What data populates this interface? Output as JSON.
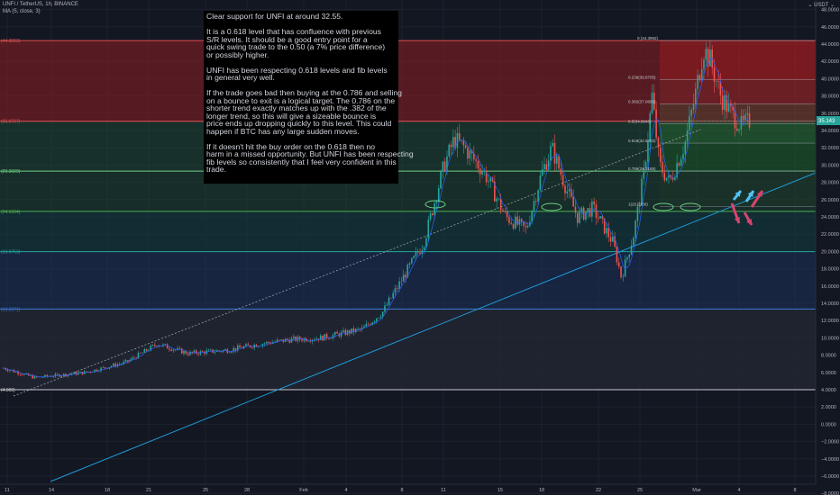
{
  "symbol_title": "UNFI / TetherUS, 1h, BINANCE",
  "indicator_label": "MA (5, close, 3)",
  "currency_selector": "USDT",
  "annotation": {
    "paragraphs": [
      [
        "Clear support for UNFI at around 32.55."
      ],
      [
        "It is a 0.618 level that has confluence with previous",
        "S/R levels. It should be a good entry point for a",
        "quick swing trade to the 0.50 (a 7% price difference)",
        "or possibly higher."
      ],
      [
        "UNFI has been respecting 0.618 levels and fib levels",
        "in general very well."
      ],
      [
        "If the trade goes bad then buying at the 0.786 and selling",
        "on a bounce to exit is a logical target. The 0.786 on the",
        "shorter trend exactly matches up with the .382 of the",
        "longer trend, so this will give a sizeable bounce is",
        "price ends up dropping quickly to this level. This could",
        "happen if BTC has any large sudden moves."
      ],
      [
        "If it doesn't hit the buy order on the 0.618 then no",
        "harm in a missed opportunity. But UNFI has been respecting",
        "fib levels so consistently that I feel very confident in this",
        "trade."
      ]
    ]
  },
  "left_fib_labels": [
    "(44.3992)",
    "(35.0727)",
    "(29.3029)",
    "(24.6394)",
    "(19.9753)",
    "(13.3371)",
    "(4.000)"
  ],
  "right_fib_labels": [
    "0 (44.3992)",
    "0.236(39.8705)",
    "0.382(37.0689)",
    "0.5(34.8046)",
    "0.618(32.5402)",
    "0.786(29.3165)",
    "1(25.2100)"
  ],
  "current_price": "35.143",
  "colors": {
    "background": "#131722",
    "grid": "#1e222d",
    "text": "#b2b5be",
    "candle_up": "#26a69a",
    "candle_down": "#ef5350",
    "ma_line": "#2962ff",
    "trendline": "#1e9bd7",
    "fib_zone_red": "#8e1e22",
    "fib_zone_green": "#1d4a33",
    "fib_zone_teal": "#123a3f",
    "fib_zone_blue": "#1b3159",
    "fib_zone_gray": "#232733",
    "price_tag": "#26a69a"
  },
  "chart_data": {
    "type": "candlestick",
    "title": "UNFI / TetherUS, 1h, BINANCE",
    "xlabel": "",
    "ylabel": "",
    "ylim": [
      -10,
      64
    ],
    "x_tick_labels": [
      "11",
      "14",
      "18",
      "21",
      "25",
      "28",
      "Feb",
      "4",
      "8",
      "11",
      "15",
      "18",
      "22",
      "25",
      "Mar",
      "4",
      "8"
    ],
    "y_tick_labels": [
      "62.0000",
      "60.0000",
      "58.0000",
      "56.0000",
      "54.0000",
      "52.0000",
      "50.0000",
      "48.0000",
      "46.0000",
      "44.0000",
      "42.0000",
      "40.0000",
      "38.0000",
      "36.0000",
      "34.0000",
      "32.0000",
      "30.0000",
      "28.0000",
      "26.0000",
      "24.0000",
      "22.0000",
      "20.0000",
      "18.0000",
      "16.0000",
      "14.0000",
      "12.0000",
      "10.0000",
      "8.0000",
      "6.0000",
      "4.0000",
      "2.0000",
      "0.0000",
      "−2.0000",
      "−4.0000",
      "−6.0000",
      "−8.0000"
    ],
    "y_tick_values": [
      62,
      60,
      58,
      56,
      54,
      52,
      50,
      48,
      46,
      44,
      42,
      40,
      38,
      36,
      34,
      32,
      30,
      28,
      26,
      24,
      22,
      20,
      18,
      16,
      14,
      12,
      10,
      8,
      6,
      4,
      2,
      0,
      -2,
      -4,
      -6,
      -8
    ],
    "price_anchors": [
      {
        "t": 0,
        "p": 6.5
      },
      {
        "t": 3,
        "p": 5.4
      },
      {
        "t": 8,
        "p": 6.0
      },
      {
        "t": 12,
        "p": 7.2
      },
      {
        "t": 15,
        "p": 9.3
      },
      {
        "t": 18,
        "p": 8.2
      },
      {
        "t": 22,
        "p": 8.6
      },
      {
        "t": 25,
        "p": 9.3
      },
      {
        "t": 28,
        "p": 9.8
      },
      {
        "t": 31,
        "p": 10.0
      },
      {
        "t": 35,
        "p": 11.0
      },
      {
        "t": 37,
        "p": 13.0
      },
      {
        "t": 39,
        "p": 17.0
      },
      {
        "t": 41,
        "p": 21.0
      },
      {
        "t": 43,
        "p": 30.0
      },
      {
        "t": 44,
        "p": 33.0
      },
      {
        "t": 45,
        "p": 32.0
      },
      {
        "t": 47,
        "p": 29.0
      },
      {
        "t": 49,
        "p": 24.0
      },
      {
        "t": 51,
        "p": 22.5
      },
      {
        "t": 52.5,
        "p": 29.0
      },
      {
        "t": 53.5,
        "p": 32.0
      },
      {
        "t": 55,
        "p": 27.0
      },
      {
        "t": 56,
        "p": 24.0
      },
      {
        "t": 57.5,
        "p": 25.0
      },
      {
        "t": 59.5,
        "p": 21.0
      },
      {
        "t": 60.3,
        "p": 17.0
      },
      {
        "t": 61.5,
        "p": 22.0
      },
      {
        "t": 62.5,
        "p": 29.0
      },
      {
        "t": 63.3,
        "p": 38.0
      },
      {
        "t": 64,
        "p": 30.0
      },
      {
        "t": 65,
        "p": 28.0
      },
      {
        "t": 66.5,
        "p": 32.5
      },
      {
        "t": 67.5,
        "p": 38.0
      },
      {
        "t": 68.3,
        "p": 43.5
      },
      {
        "t": 69,
        "p": 42.0
      },
      {
        "t": 70,
        "p": 38.0
      },
      {
        "t": 71,
        "p": 36.0
      },
      {
        "t": 72,
        "p": 34.5
      },
      {
        "t": 72.8,
        "p": 35.1
      }
    ],
    "fib_levels_left": [
      44.3992,
      35.0727,
      29.3029,
      24.6394,
      19.9753,
      13.3371,
      4.0
    ],
    "fib_levels_right": [
      44.3992,
      39.8705,
      37.0689,
      34.8046,
      32.5402,
      29.3165,
      25.21
    ],
    "current_price": 35.143
  }
}
